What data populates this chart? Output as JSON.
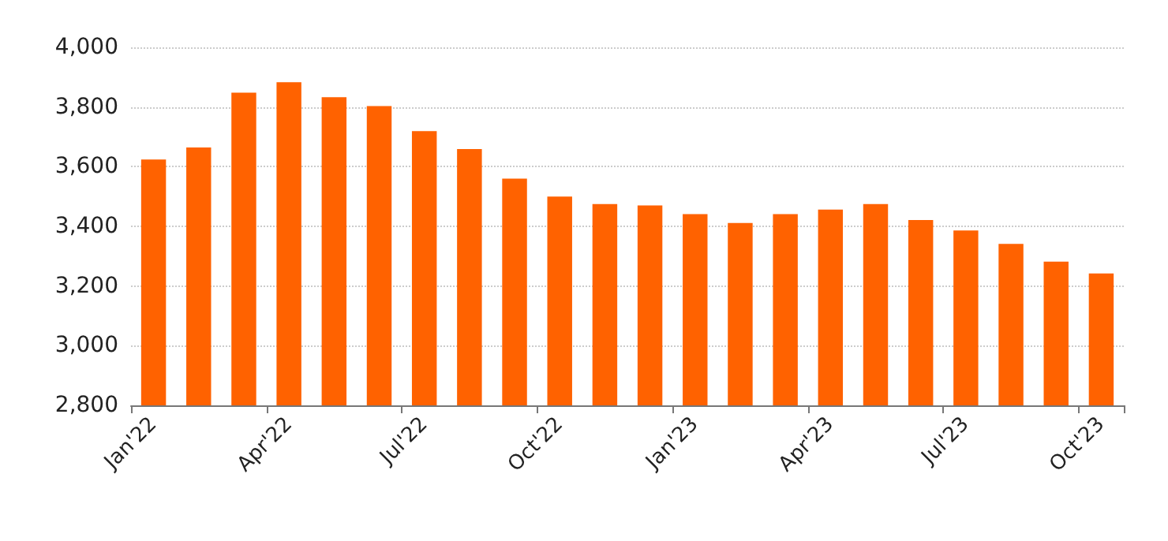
{
  "chart_data": {
    "type": "bar",
    "categories": [
      "Jan'22",
      null,
      null,
      "Apr'22",
      null,
      null,
      "Jul'22",
      null,
      null,
      "Oct'22",
      null,
      null,
      "Jan'23",
      null,
      null,
      "Apr'23",
      null,
      null,
      "Jul'23",
      null,
      null,
      "Oct'23"
    ],
    "values": [
      3624,
      3664,
      3848,
      3883,
      3833,
      3803,
      3719,
      3659,
      3560,
      3500,
      3475,
      3470,
      3441,
      3411,
      3441,
      3456,
      3475,
      3421,
      3386,
      3341,
      3282,
      3242
    ],
    "color": "#ff6200",
    "ylim": [
      2800,
      4000
    ],
    "yticks": [
      {
        "value": 2800,
        "label": "2,800"
      },
      {
        "value": 3000,
        "label": "3,000"
      },
      {
        "value": 3200,
        "label": "3,200"
      },
      {
        "value": 3400,
        "label": "3,400"
      },
      {
        "value": 3600,
        "label": "3,600"
      },
      {
        "value": 3800,
        "label": "3,800"
      },
      {
        "value": 4000,
        "label": "4,000"
      }
    ],
    "grid": "y"
  }
}
